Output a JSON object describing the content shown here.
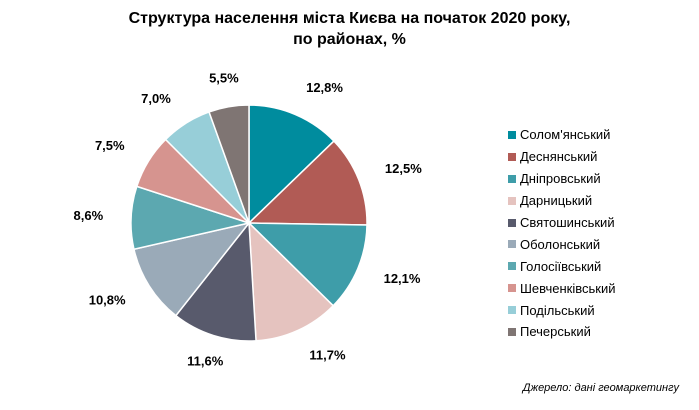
{
  "chart_data": {
    "type": "pie",
    "title": "Структура населення міста Києва на початок 2020 року,",
    "subtitle": "по районах, %",
    "categories": [
      "Солом'янський",
      "Деснянський",
      "Дніпровський",
      "Дарницький",
      "Святошинський",
      "Оболонський",
      "Голосіївський",
      "Шевченківський",
      "Подільський",
      "Печерський"
    ],
    "values": [
      12.8,
      12.5,
      12.1,
      11.7,
      11.6,
      10.8,
      8.6,
      7.5,
      7.0,
      5.5
    ],
    "data_labels": [
      "12,8%",
      "12,5%",
      "12,1%",
      "11,7%",
      "11,6%",
      "10,8%",
      "8,6%",
      "7,5%",
      "7,0%",
      "5,5%"
    ],
    "colors": [
      "#008C9E",
      "#B15B55",
      "#3E9DA9",
      "#E5C3BF",
      "#585A6C",
      "#9AAAB8",
      "#5CA8B0",
      "#D6948F",
      "#97CED8",
      "#7F7573"
    ],
    "legend_position": "right",
    "start_angle": "top, clockwise"
  },
  "source": "Джерело: дані геомаркетингу"
}
